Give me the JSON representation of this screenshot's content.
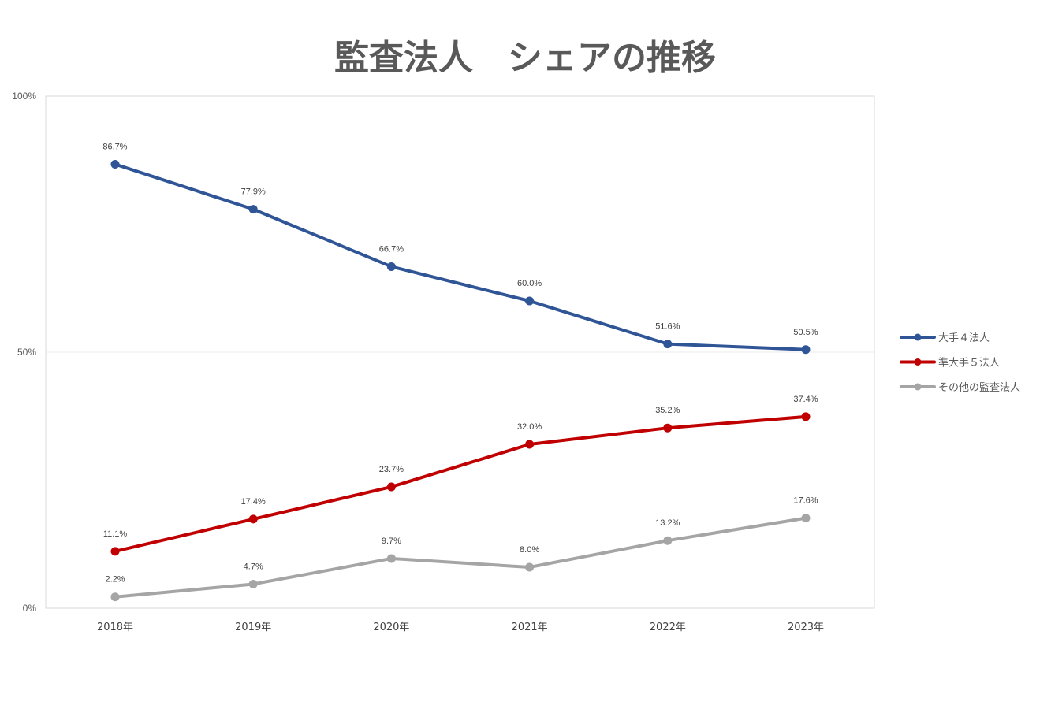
{
  "chart_data": {
    "type": "line",
    "title": "監査法人　シェアの推移",
    "xlabel": "",
    "ylabel": "",
    "categories": [
      "2018年",
      "2019年",
      "2020年",
      "2021年",
      "2022年",
      "2023年"
    ],
    "ylim": [
      0,
      100
    ],
    "yticks": [
      {
        "value": 0,
        "label": "0%"
      },
      {
        "value": 50,
        "label": "50%"
      },
      {
        "value": 100,
        "label": "100%"
      }
    ],
    "grid": true,
    "legend_position": "right",
    "series": [
      {
        "name": "大手４法人",
        "color": "#2F5597",
        "values": [
          86.7,
          77.9,
          66.7,
          60.0,
          51.6,
          50.5
        ],
        "labels": [
          "86.7%",
          "77.9%",
          "66.7%",
          "60.0%",
          "51.6%",
          "50.5%"
        ]
      },
      {
        "name": "準大手５法人",
        "color": "#C00000",
        "values": [
          11.1,
          17.4,
          23.7,
          32.0,
          35.2,
          37.4
        ],
        "labels": [
          "11.1%",
          "17.4%",
          "23.7%",
          "32.0%",
          "35.2%",
          "37.4%"
        ]
      },
      {
        "name": "その他の監査法人",
        "color": "#A5A5A5",
        "values": [
          2.2,
          4.7,
          9.7,
          8.0,
          13.2,
          17.6
        ],
        "labels": [
          "2.2%",
          "4.7%",
          "9.7%",
          "8.0%",
          "13.2%",
          "17.6%"
        ]
      }
    ],
    "colors": {
      "plot_border": "#D9D9D9",
      "gridline": "#EBEBEB"
    }
  }
}
